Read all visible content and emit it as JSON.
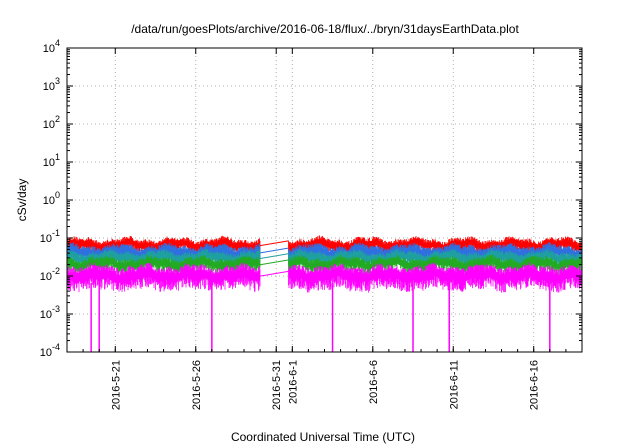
{
  "chart_data": {
    "type": "line",
    "title": "/data/run/goesPlots/archive/2016-06-18/flux/../bryn/31daysEarthData.plot",
    "xlabel": "Coordinated Universal Time (UTC)",
    "ylabel": "cSv/day",
    "yscale": "log",
    "ylim": [
      0.0001,
      10000
    ],
    "xlim": [
      "2016-05-18",
      "2016-06-19"
    ],
    "grid": true,
    "x_ticks": [
      "2016-5-21",
      "2016-5-26",
      "2016-5-31",
      "2016-6-1",
      "2016-6-6",
      "2016-6-11",
      "2016-6-16"
    ],
    "y_ticks": [
      {
        "value": 0.0001,
        "mant": "10",
        "exp": "-4"
      },
      {
        "value": 0.001,
        "mant": "10",
        "exp": "-3"
      },
      {
        "value": 0.01,
        "mant": "10",
        "exp": "-2"
      },
      {
        "value": 0.1,
        "mant": "10",
        "exp": "-1"
      },
      {
        "value": 1,
        "mant": "10",
        "exp": "0"
      },
      {
        "value": 10,
        "mant": "10",
        "exp": "1"
      },
      {
        "value": 100,
        "mant": "10",
        "exp": "2"
      },
      {
        "value": 1000,
        "mant": "10",
        "exp": "3"
      },
      {
        "value": 10000,
        "mant": "10",
        "exp": "4"
      }
    ],
    "series": [
      {
        "color": "#ff0000",
        "level": 0.07,
        "spread": 0.18
      },
      {
        "color": "#2f6fe0",
        "level": 0.045,
        "spread": 0.2
      },
      {
        "color": "#1fa0a0",
        "level": 0.032,
        "spread": 0.18
      },
      {
        "color": "#22aa22",
        "level": 0.022,
        "spread": 0.18
      },
      {
        "color": "#ff00ff",
        "level": 0.011,
        "spread": 0.3
      }
    ],
    "data_gap": [
      "2016-05-30",
      "2016-05-31T18:00"
    ],
    "dropouts": [
      "2016-05-19T12:00",
      "2016-05-20T00:00",
      "2016-05-27T00:00",
      "2016-06-03T12:00",
      "2016-06-08T12:00",
      "2016-06-10T18:00",
      "2016-06-17T00:00"
    ],
    "dropout_min": 0.0001
  }
}
